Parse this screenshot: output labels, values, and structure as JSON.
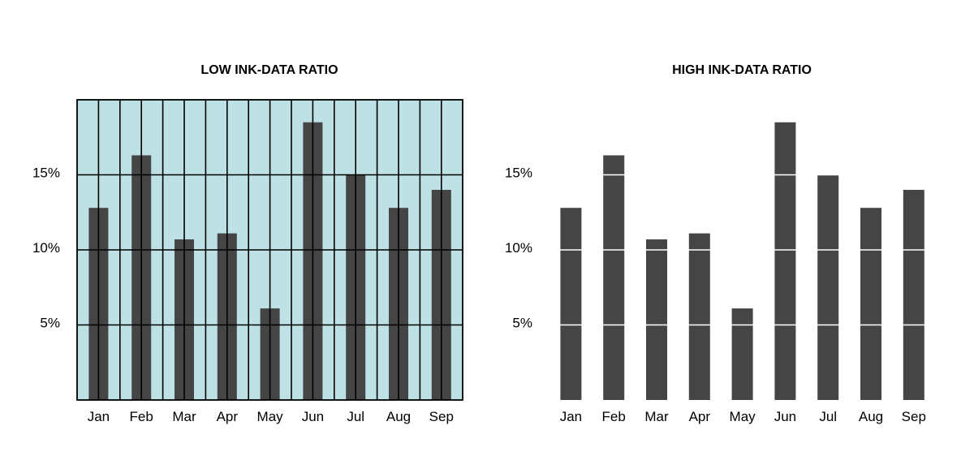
{
  "chart_data": [
    {
      "type": "bar",
      "title": "LOW INK-DATA RATIO",
      "categories": [
        "Jan",
        "Feb",
        "Mar",
        "Apr",
        "May",
        "Jun",
        "Jul",
        "Aug",
        "Sep"
      ],
      "values": [
        12.8,
        16.3,
        10.7,
        11.1,
        6.1,
        18.5,
        15.0,
        12.8,
        14.0
      ],
      "yticks": [
        5,
        10,
        15
      ],
      "ytick_labels": [
        "5%",
        "10%",
        "15%"
      ],
      "ylim": [
        0,
        20
      ],
      "xlabel": "",
      "ylabel": "",
      "grid": true,
      "background": "#bde1e4",
      "bar_color": "#454545"
    },
    {
      "type": "bar",
      "title": "HIGH INK-DATA RATIO",
      "categories": [
        "Jan",
        "Feb",
        "Mar",
        "Apr",
        "May",
        "Jun",
        "Jul",
        "Aug",
        "Sep"
      ],
      "values": [
        12.8,
        16.3,
        10.7,
        11.1,
        6.1,
        18.5,
        15.0,
        12.8,
        14.0
      ],
      "yticks": [
        5,
        10,
        15
      ],
      "ytick_labels": [
        "5%",
        "10%",
        "15%"
      ],
      "ylim": [
        0,
        20
      ],
      "xlabel": "",
      "ylabel": "",
      "grid": false,
      "background": "#ffffff",
      "bar_color": "#454545"
    }
  ]
}
